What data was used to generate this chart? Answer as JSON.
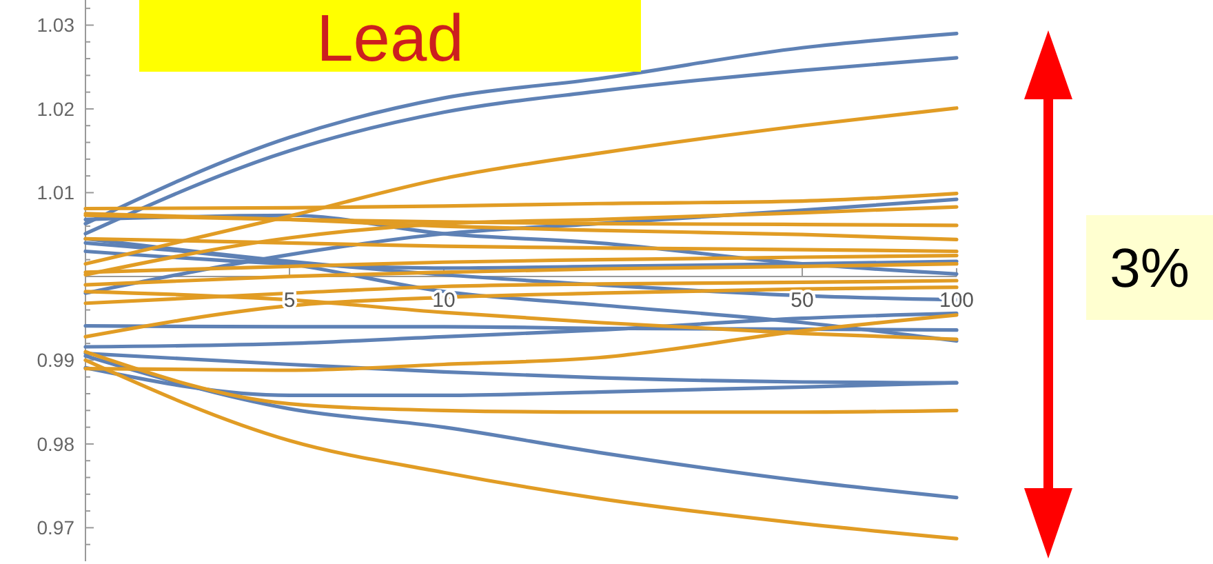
{
  "chart_data": {
    "type": "line",
    "title": "Lead",
    "annotations": [
      "3%"
    ],
    "x": [
      2,
      5,
      10,
      20,
      50,
      100
    ],
    "log": "x",
    "xlim": [
      2,
      100
    ],
    "ylim": [
      0.966,
      1.033
    ],
    "xticks": [
      5,
      10,
      50,
      100
    ],
    "yticks": [
      {
        "value": 0.968,
        "label": null
      },
      0.97,
      {
        "value": 0.972,
        "label": null
      },
      {
        "value": 0.974,
        "label": null
      },
      {
        "value": 0.976,
        "label": null
      },
      {
        "value": 0.978,
        "label": null
      },
      0.98,
      {
        "value": 0.982,
        "label": null
      },
      {
        "value": 0.984,
        "label": null
      },
      {
        "value": 0.986,
        "label": null
      },
      {
        "value": 0.988,
        "label": null
      },
      0.99,
      {
        "value": 0.992,
        "label": null
      },
      {
        "value": 0.994,
        "label": null
      },
      {
        "value": 0.996,
        "label": null
      },
      {
        "value": 0.998,
        "label": null
      },
      {
        "value": 1.002,
        "label": null
      },
      {
        "value": 1.004,
        "label": null
      },
      {
        "value": 1.006,
        "label": null
      },
      {
        "value": 1.008,
        "label": null
      },
      1.01,
      {
        "value": 1.012,
        "label": null
      },
      {
        "value": 1.014,
        "label": null
      },
      {
        "value": 1.016,
        "label": null
      },
      {
        "value": 1.018,
        "label": null
      },
      1.02,
      {
        "value": 1.022,
        "label": null
      },
      {
        "value": 1.024,
        "label": null
      },
      {
        "value": 1.026,
        "label": null
      },
      {
        "value": 1.028,
        "label": null
      },
      1.03,
      {
        "value": 1.032,
        "label": null
      }
    ],
    "tick_labels": true,
    "grid": false,
    "marker": "none",
    "line_style": "solid",
    "series": [
      {
        "color": "#5e81b5",
        "values": [
          1.0063,
          1.0166,
          1.0213,
          1.0236,
          1.0273,
          1.029
        ]
      },
      {
        "color": "#5e81b5",
        "values": [
          1.0051,
          1.015,
          1.0196,
          1.0221,
          1.0246,
          1.0261
        ]
      },
      {
        "color": "#5e81b5",
        "values": [
          0.998,
          1.0026,
          1.0051,
          1.0063,
          1.0079,
          1.0092
        ]
      },
      {
        "color": "#5e81b5",
        "values": [
          1.0068,
          1.0073,
          1.0051,
          1.004,
          1.0015,
          1.0003
        ]
      },
      {
        "color": "#5e81b5",
        "values": [
          1.003,
          1.0015,
          1.001,
          1.0012,
          1.0015,
          1.0018
        ]
      },
      {
        "color": "#5e81b5",
        "values": [
          1.0045,
          1.0018,
          1.0002,
          0.999,
          0.9977,
          0.9972
        ]
      },
      {
        "color": "#5e81b5",
        "values": [
          1.004,
          1.0015,
          0.9982,
          0.9966,
          0.9945,
          0.9923
        ]
      },
      {
        "color": "#5e81b5",
        "values": [
          0.9941,
          0.994,
          0.994,
          0.9938,
          0.9937,
          0.9936
        ]
      },
      {
        "color": "#5e81b5",
        "values": [
          0.9916,
          0.992,
          0.9928,
          0.9936,
          0.995,
          0.9956
        ]
      },
      {
        "color": "#5e81b5",
        "values": [
          0.9908,
          0.9895,
          0.9886,
          0.9879,
          0.9874,
          0.9873
        ]
      },
      {
        "color": "#5e81b5",
        "values": [
          0.9891,
          0.9858,
          0.9858,
          0.9862,
          0.9868,
          0.9873
        ]
      },
      {
        "color": "#5e81b5",
        "values": [
          0.9905,
          0.9842,
          0.982,
          0.979,
          0.9756,
          0.9736
        ]
      },
      {
        "color": "#e19c24",
        "values": [
          1.0015,
          1.0072,
          1.0117,
          1.0147,
          1.018,
          1.0201
        ]
      },
      {
        "color": "#e19c24",
        "values": [
          1.0081,
          1.0082,
          1.0084,
          1.0087,
          1.009,
          1.0099
        ]
      },
      {
        "color": "#e19c24",
        "values": [
          1.0002,
          1.0046,
          1.0063,
          1.0068,
          1.0076,
          1.0083
        ]
      },
      {
        "color": "#e19c24",
        "values": [
          1.0073,
          1.0068,
          1.0065,
          1.0063,
          1.0062,
          1.0061
        ]
      },
      {
        "color": "#e19c24",
        "values": [
          1.0075,
          1.0068,
          1.006,
          1.0055,
          1.005,
          1.0044
        ]
      },
      {
        "color": "#e19c24",
        "values": [
          1.0045,
          1.004,
          1.0036,
          1.0034,
          1.0032,
          1.003
        ]
      },
      {
        "color": "#e19c24",
        "values": [
          1.0005,
          1.0012,
          1.0017,
          1.002,
          1.0023,
          1.0025
        ]
      },
      {
        "color": "#e19c24",
        "values": [
          0.999,
          1.0,
          1.0005,
          1.0009,
          1.0012,
          1.0015
        ]
      },
      {
        "color": "#e19c24",
        "values": [
          0.9968,
          0.998,
          0.9988,
          0.9991,
          0.9993,
          0.9995
        ]
      },
      {
        "color": "#e19c24",
        "values": [
          0.9928,
          0.9965,
          0.9975,
          0.998,
          0.9985,
          0.9987
        ]
      },
      {
        "color": "#e19c24",
        "values": [
          0.9982,
          0.9972,
          0.9957,
          0.9945,
          0.9932,
          0.9925
        ]
      },
      {
        "color": "#e19c24",
        "values": [
          0.989,
          0.9888,
          0.9895,
          0.9903,
          0.9935,
          0.9954
        ]
      },
      {
        "color": "#e19c24",
        "values": [
          0.991,
          0.9848,
          0.984,
          0.9838,
          0.9838,
          0.984
        ]
      },
      {
        "color": "#e19c24",
        "values": [
          0.99,
          0.9804,
          0.9766,
          0.9735,
          0.9705,
          0.9687
        ]
      }
    ]
  }
}
